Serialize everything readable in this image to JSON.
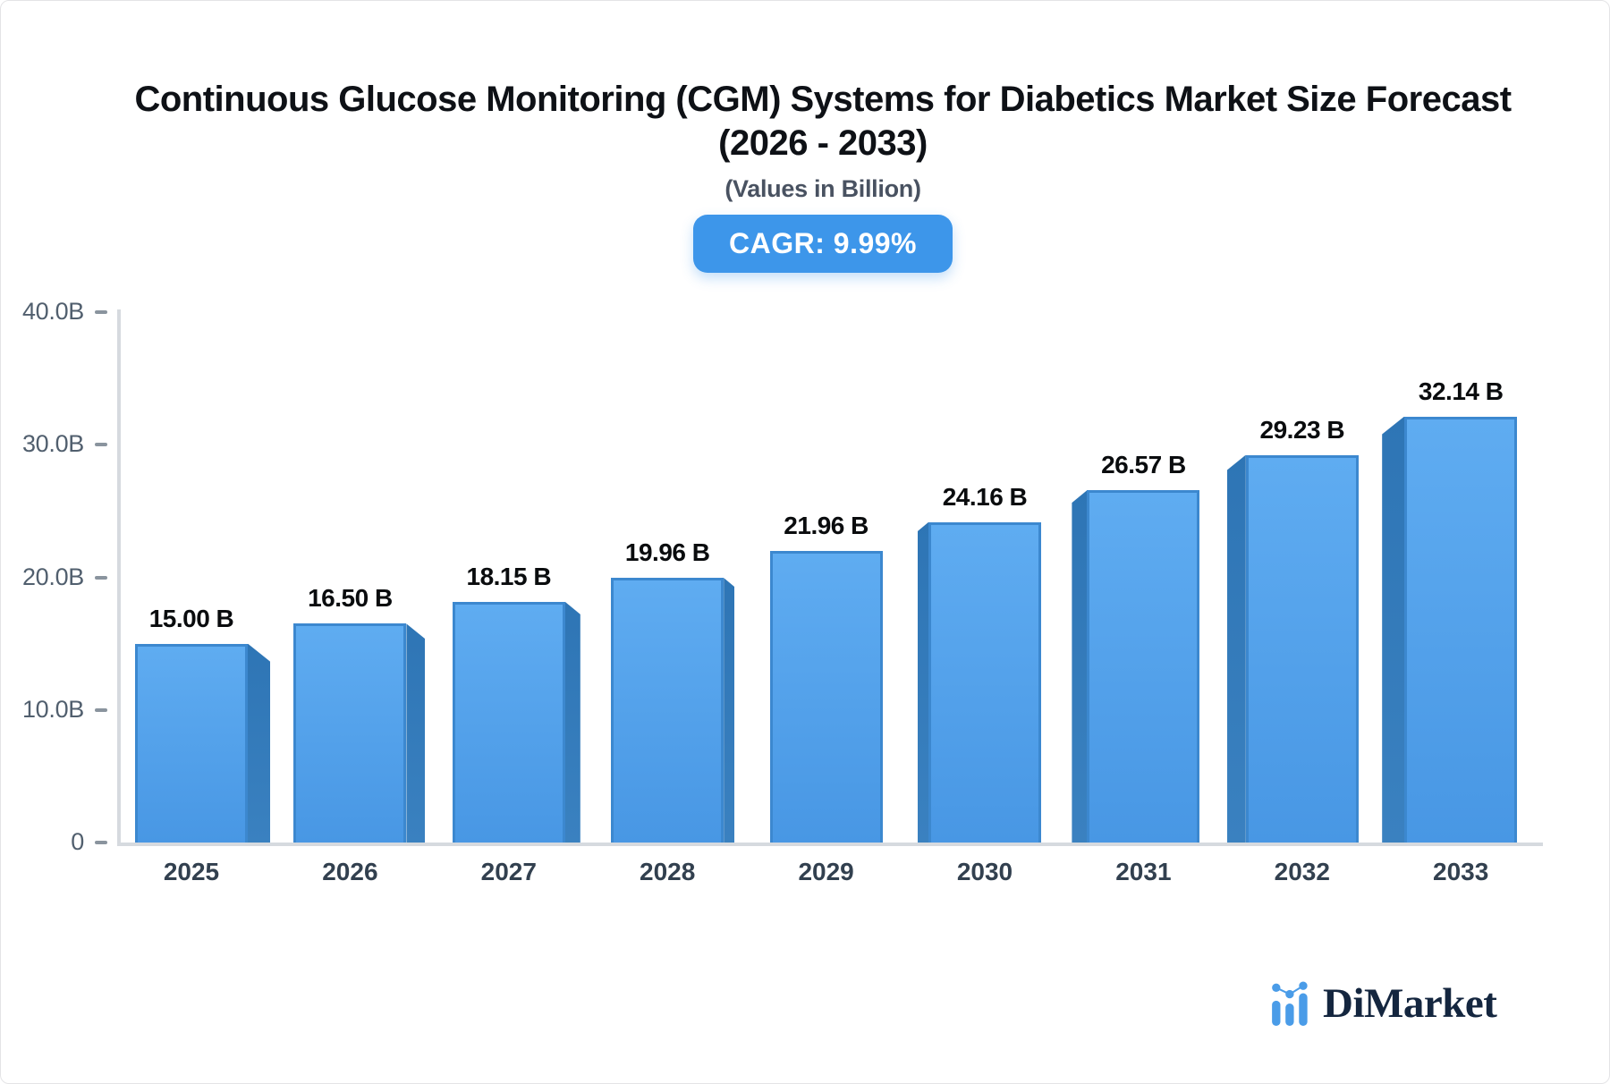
{
  "header": {
    "title_line1": "Continuous Glucose Monitoring (CGM) Systems for Diabetics Market Size Forecast",
    "title_line2": "(2026 - 2033)",
    "subtitle": "(Values in Billion)",
    "cagr_badge": "CAGR: 9.99%"
  },
  "chart_data": {
    "type": "bar",
    "title": "Continuous Glucose Monitoring (CGM) Systems for Diabetics Market Size Forecast (2026 - 2033)",
    "subtitle": "(Values in Billion)",
    "cagr_pct": 9.99,
    "categories": [
      "2025",
      "2026",
      "2027",
      "2028",
      "2029",
      "2030",
      "2031",
      "2032",
      "2033"
    ],
    "values": [
      15.0,
      16.5,
      18.15,
      19.96,
      21.96,
      24.16,
      26.57,
      29.23,
      32.14
    ],
    "value_labels": [
      "15.00 B",
      "16.50 B",
      "18.15 B",
      "19.96 B",
      "21.96 B",
      "24.16 B",
      "26.57 B",
      "29.23 B",
      "32.14 B"
    ],
    "xlabel": "",
    "ylabel": "",
    "ylim": [
      0,
      40
    ],
    "y_ticks": [
      {
        "label": "40.0B",
        "value": 40
      },
      {
        "label": "30.0B",
        "value": 30
      },
      {
        "label": "20.0B",
        "value": 20
      },
      {
        "label": "10.0B",
        "value": 10
      },
      {
        "label": "0",
        "value": 0
      }
    ],
    "grid": false,
    "legend": false,
    "style": "3d-perspective-bars",
    "colors": {
      "bar_face": "#4e9fe9",
      "bar_face_border": "#3c88cf",
      "bar_side": "#2f77b6",
      "badge_bg": "#3d96ea",
      "badge_text": "#ffffff",
      "axis_line": "#d6dadf",
      "value_label": "#0a0c0e"
    }
  },
  "footer": {
    "brand": "DiMarket",
    "brand_icon": "bar-line-chart-icon"
  }
}
